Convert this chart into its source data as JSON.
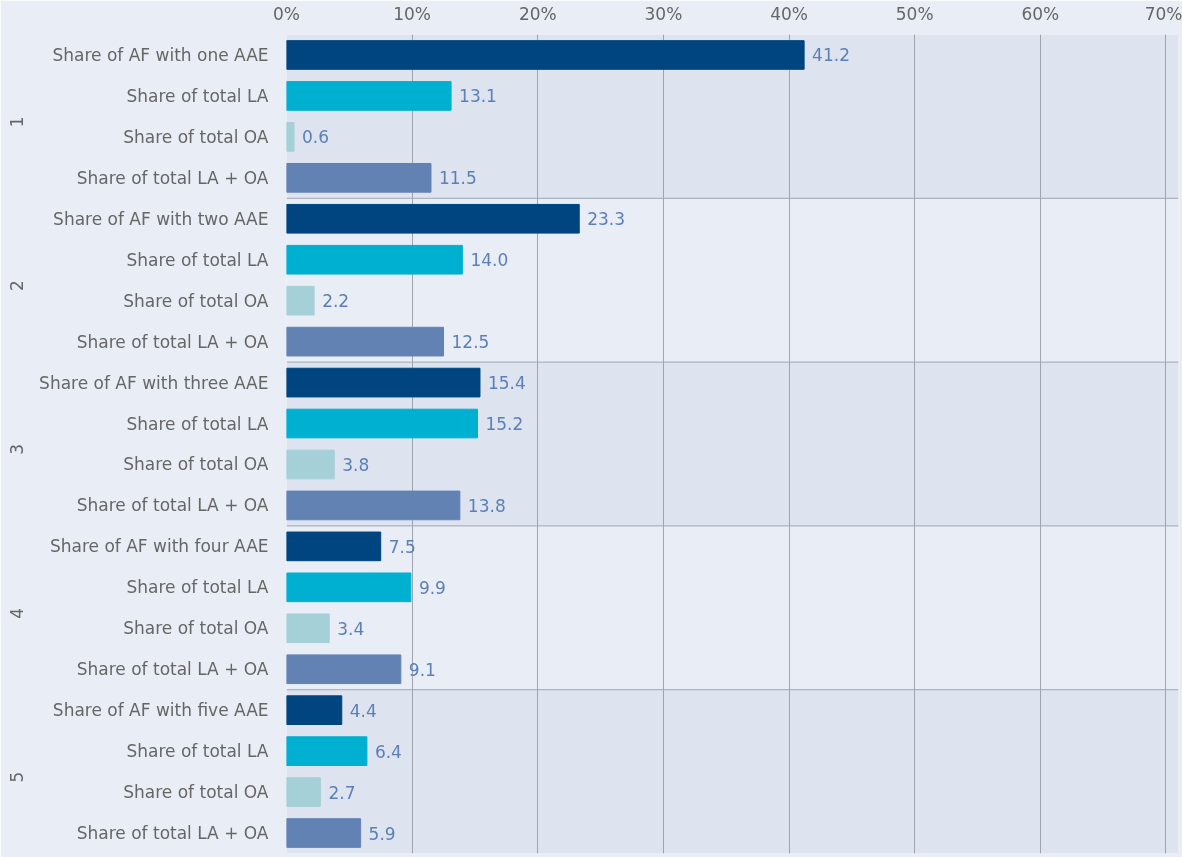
{
  "chart_data": {
    "type": "bar",
    "orientation": "horizontal",
    "categories": [
      "Share of AF with one AAE",
      "Share of total LA",
      "Share of total OA",
      "Share of total LA + OA",
      "Share of AF with two AAE",
      "Share of total LA",
      "Share of total OA",
      "Share of total LA + OA",
      "Share of AF with three AAE",
      "Share of total LA",
      "Share of total OA",
      "Share of total LA + OA",
      "Share of AF with four AAE",
      "Share of total LA",
      "Share of total OA",
      "Share of total LA + OA",
      "Share of AF with five AAE",
      "Share of total LA",
      "Share of total OA",
      "Share of total LA + OA"
    ],
    "values": [
      41.2,
      13.1,
      0.6,
      11.5,
      23.3,
      14.0,
      2.2,
      12.5,
      15.4,
      15.2,
      3.8,
      13.8,
      7.5,
      9.9,
      3.4,
      9.1,
      4.4,
      6.4,
      2.7,
      5.9
    ],
    "colors": [
      "#00457f",
      "#00b0d0",
      "#a6d0d8",
      "#6382b4",
      "#00457f",
      "#00b0d0",
      "#a6d0d8",
      "#6382b4",
      "#00457f",
      "#00b0d0",
      "#a6d0d8",
      "#6382b4",
      "#00457f",
      "#00b0d0",
      "#a6d0d8",
      "#6382b4",
      "#00457f",
      "#00b0d0",
      "#a6d0d8",
      "#6382b4"
    ],
    "value_labels": [
      "41.2",
      "13.1",
      "0.6",
      "11.5",
      "23.3",
      "14.0",
      "2.2",
      "12.5",
      "15.4",
      "15.2",
      "3.8",
      "13.8",
      "7.5",
      "9.9",
      "3.4",
      "9.1",
      "4.4",
      "6.4",
      "2.7",
      "5.9"
    ],
    "annotations": [
      "1",
      "2",
      "3",
      "4",
      "5"
    ],
    "xlim": [
      0,
      71
    ],
    "xticks": [
      {
        "value": 0,
        "label": "0%"
      },
      {
        "value": 10,
        "label": "10%"
      },
      {
        "value": 20,
        "label": "20%"
      },
      {
        "value": 30,
        "label": "30%"
      },
      {
        "value": 40,
        "label": "40%"
      },
      {
        "value": 50,
        "label": "50%"
      },
      {
        "value": 60,
        "label": "60%"
      },
      {
        "value": 70,
        "label": "70%"
      }
    ],
    "grid": "x"
  }
}
